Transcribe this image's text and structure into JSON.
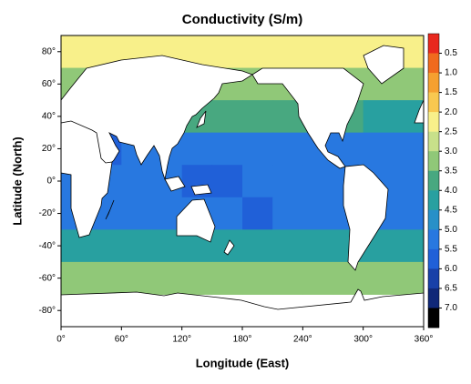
{
  "chart_data": {
    "type": "heatmap",
    "title": "Conductivity (S/m)",
    "x_label": "Longitude (East)",
    "y_label": "Latitude (North)",
    "xlim": [
      0,
      360
    ],
    "ylim": [
      -90,
      90
    ],
    "xticks": [
      {
        "value": 0,
        "label": "0°"
      },
      {
        "value": 60,
        "label": "60°"
      },
      {
        "value": 120,
        "label": "120°"
      },
      {
        "value": 180,
        "label": "180°"
      },
      {
        "value": 240,
        "label": "240°"
      },
      {
        "value": 300,
        "label": "300°"
      },
      {
        "value": 360,
        "label": "360°"
      }
    ],
    "yticks": [
      {
        "value": 80,
        "label": "80°"
      },
      {
        "value": 60,
        "label": "60°"
      },
      {
        "value": 40,
        "label": "40°"
      },
      {
        "value": 20,
        "label": "20°"
      },
      {
        "value": 0,
        "label": "0°"
      },
      {
        "value": -20,
        "label": "-20°"
      },
      {
        "value": -40,
        "label": "-40°"
      },
      {
        "value": -60,
        "label": "-60°"
      },
      {
        "value": -80,
        "label": "-80°"
      }
    ],
    "x": [
      15,
      45,
      75,
      105,
      135,
      165,
      195,
      225,
      255,
      285,
      315,
      345
    ],
    "y": [
      80,
      60,
      40,
      20,
      0,
      -20,
      -40,
      -60,
      -80
    ],
    "z": [
      [
        2.2,
        2.2,
        2.2,
        2.2,
        2.2,
        2.2,
        2.3,
        2.2,
        2.2,
        2.2,
        2.2,
        2.2
      ],
      [
        3.2,
        3.2,
        3.0,
        3.0,
        3.2,
        3.1,
        3.2,
        3.2,
        3.2,
        3.1,
        3.0,
        3.3
      ],
      [
        4.6,
        4.3,
        4.0,
        4.0,
        3.7,
        3.8,
        3.8,
        3.6,
        3.5,
        3.8,
        4.2,
        4.2
      ],
      [
        5.6,
        5.6,
        5.2,
        5.1,
        5.2,
        5.3,
        5.3,
        5.2,
        5.0,
        5.3,
        5.3,
        5.2
      ],
      [
        5.2,
        5.2,
        5.3,
        5.4,
        5.5,
        5.5,
        5.4,
        5.4,
        5.3,
        5.3,
        5.2,
        5.2
      ],
      [
        5.2,
        5.3,
        5.3,
        5.2,
        5.3,
        5.4,
        5.5,
        5.3,
        5.1,
        5.0,
        5.0,
        5.0
      ],
      [
        4.3,
        4.2,
        4.2,
        4.1,
        4.1,
        4.2,
        4.2,
        4.2,
        4.3,
        4.0,
        4.0,
        4.1
      ],
      [
        3.2,
        3.2,
        3.2,
        3.1,
        3.1,
        3.2,
        3.2,
        3.2,
        3.1,
        3.1,
        3.1,
        3.2
      ],
      [
        null,
        null,
        null,
        null,
        null,
        null,
        null,
        null,
        null,
        null,
        null,
        null
      ]
    ],
    "clevels": [
      0.5,
      {
        "value": 1,
        "label": "1.0"
      },
      1.5,
      {
        "value": 2,
        "label": "2.0"
      },
      2.5,
      {
        "value": 3,
        "label": "3.0"
      },
      3.5,
      {
        "value": 4,
        "label": "4.0"
      },
      4.5,
      {
        "value": 5,
        "label": "5.0"
      },
      5.5,
      {
        "value": 6,
        "label": "6.0"
      },
      6.5,
      {
        "value": 7,
        "label": "7.0"
      }
    ],
    "colors": [
      "#e8281e",
      "#f06a1e",
      "#f5a030",
      "#f8c850",
      "#f8f08a",
      "#c8e08a",
      "#90c878",
      "#48a880",
      "#28a0a0",
      "#2890c8",
      "#2878e0",
      "#2060d8",
      "#1840a8",
      "#102878",
      "#000000"
    ]
  }
}
